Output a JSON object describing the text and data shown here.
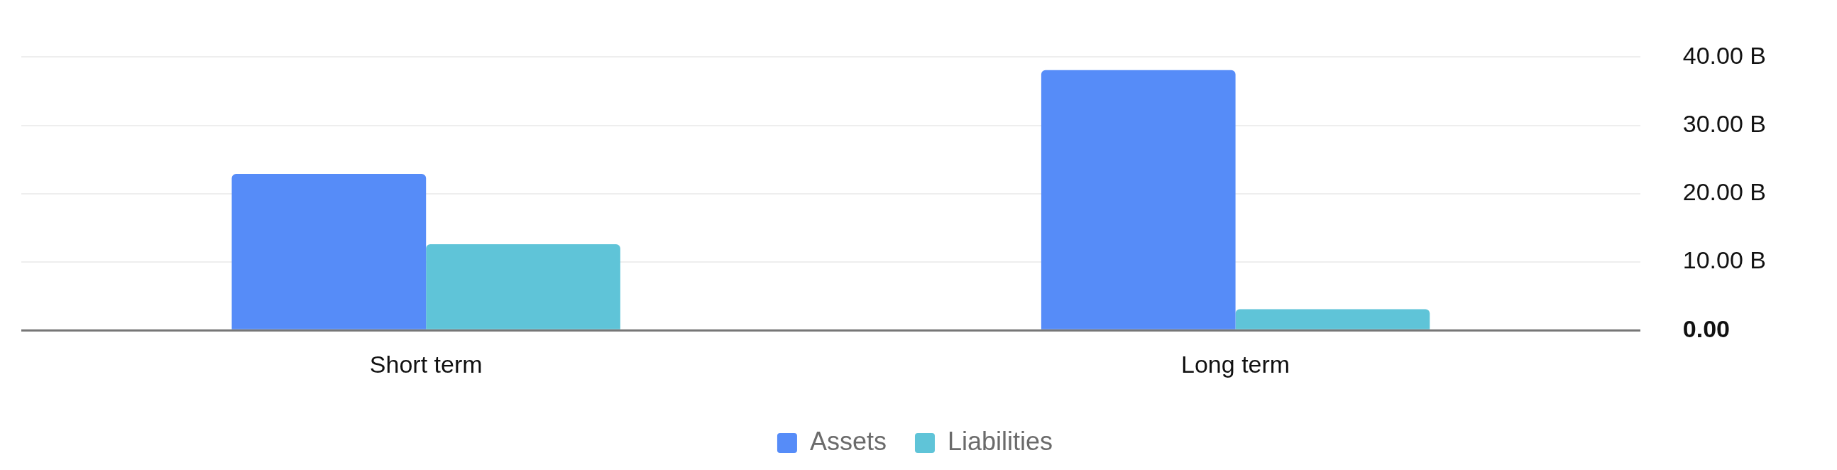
{
  "chart_data": {
    "type": "bar",
    "categories": [
      "Short term",
      "Long term"
    ],
    "series": [
      {
        "name": "Assets",
        "color": "#568cf8",
        "values": [
          22.9,
          38.1
        ]
      },
      {
        "name": "Liabilities",
        "color": "#5fc4d8",
        "values": [
          12.6,
          3.1
        ]
      }
    ],
    "ylim": [
      0,
      40
    ],
    "yticks": [
      {
        "value": 0,
        "label": "0.00"
      },
      {
        "value": 10,
        "label": "10.00 B"
      },
      {
        "value": 20,
        "label": "20.00 B"
      },
      {
        "value": 30,
        "label": "30.00 B"
      },
      {
        "value": 40,
        "label": "40.00 B"
      }
    ],
    "grid": "y",
    "legend": "bottom"
  }
}
